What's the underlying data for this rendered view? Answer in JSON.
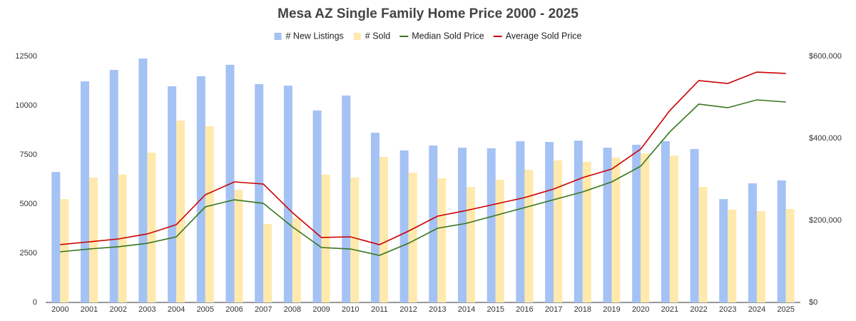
{
  "chart_data": {
    "type": "combo",
    "title": "Mesa AZ Single Family Home Price 2000 - 2025",
    "categories": [
      "2000",
      "2001",
      "2002",
      "2003",
      "2004",
      "2005",
      "2006",
      "2007",
      "2008",
      "2009",
      "2010",
      "2011",
      "2012",
      "2013",
      "2014",
      "2015",
      "2016",
      "2017",
      "2018",
      "2019",
      "2020",
      "2021",
      "2022",
      "2023",
      "2024",
      "2025"
    ],
    "series": [
      {
        "name": "# New Listings",
        "type": "bar",
        "color": "#a4c2f4",
        "values": [
          6630,
          11230,
          11810,
          12390,
          10980,
          11490,
          12070,
          11090,
          11010,
          9750,
          10510,
          8620,
          7720,
          7970,
          7860,
          7830,
          8190,
          8150,
          8220,
          7860,
          8010,
          8190,
          7790,
          5250,
          6050,
          6200
        ]
      },
      {
        "name": "# Sold",
        "type": "bar",
        "color": "#ffe9ad",
        "values": [
          5250,
          6340,
          6490,
          7610,
          9240,
          8950,
          5720,
          3990,
          4300,
          6490,
          6340,
          7390,
          6590,
          6300,
          5870,
          6230,
          6740,
          7210,
          7140,
          7360,
          7570,
          7460,
          5870,
          4710,
          4640,
          4750
        ]
      },
      {
        "name": "Median Sold Price",
        "type": "line",
        "axis": "y2",
        "color": "#38761d",
        "values": [
          123500,
          130400,
          135700,
          144300,
          160000,
          233000,
          250400,
          241700,
          184300,
          133900,
          130400,
          114800,
          144300,
          180900,
          193000,
          212200,
          231300,
          250400,
          269600,
          293900,
          332200,
          415700,
          483500,
          474800,
          493900,
          488700
        ]
      },
      {
        "name": "Average Sold Price",
        "type": "line",
        "axis": "y2",
        "color": "#cc0000",
        "values": [
          140900,
          147800,
          154800,
          167000,
          189600,
          262600,
          293900,
          288700,
          219100,
          158300,
          160000,
          140900,
          173900,
          210400,
          224300,
          240000,
          255700,
          276500,
          304300,
          325200,
          373900,
          467800,
          540900,
          533900,
          561700,
          558300
        ]
      }
    ],
    "ylim": [
      0,
      12500
    ],
    "yticks": [
      0,
      2500,
      5000,
      7500,
      10000,
      12500
    ],
    "y2lim": [
      0,
      600000
    ],
    "y2ticks": [
      {
        "value": 0,
        "label": "$0"
      },
      {
        "value": 200000,
        "label": "$200,000"
      },
      {
        "value": 400000,
        "label": "$400,000"
      },
      {
        "value": 600000,
        "label": "$600,000"
      }
    ],
    "grid": false
  }
}
